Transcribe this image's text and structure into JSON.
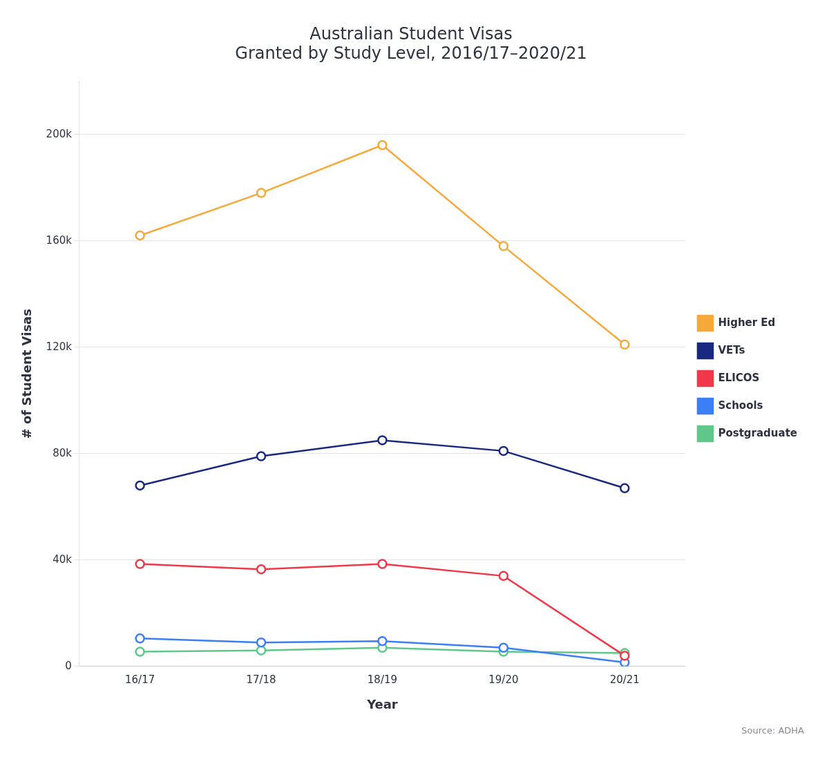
{
  "chart_data": {
    "type": "line",
    "title": "Australian Student Visas\nGranted by Study Level, 2016/17–2020/21",
    "x_label": "Year",
    "y_label": "# of Student Visas",
    "source": "Source: ADHA",
    "categories": [
      "16/17",
      "17/18",
      "18/19",
      "19/20",
      "20/21"
    ],
    "series": [
      {
        "name": "Higher Ed",
        "color": "#F5A93A",
        "values": [
          162000,
          178000,
          196000,
          158000,
          121000
        ]
      },
      {
        "name": "VETs",
        "color": "#1A2980",
        "values": [
          68000,
          79000,
          85000,
          81000,
          67000
        ]
      },
      {
        "name": "ELICOS",
        "color": "#F0384A",
        "values": [
          38500,
          36500,
          38500,
          34000,
          4000
        ]
      },
      {
        "name": "Schools",
        "color": "#3B7EF5",
        "values": [
          10500,
          9000,
          9500,
          7000,
          1500
        ]
      },
      {
        "name": "Postgraduate",
        "color": "#5DC88A",
        "values": [
          5500,
          6000,
          7000,
          5500,
          5000
        ]
      }
    ],
    "ylim": [
      0,
      220000
    ],
    "yticks": [
      0,
      {
        "value": 40000,
        "label": "40k"
      },
      {
        "value": 80000,
        "label": "80k"
      },
      {
        "value": 120000,
        "label": "120k"
      },
      {
        "value": 160000,
        "label": "160k"
      },
      {
        "value": 200000,
        "label": "200k"
      }
    ],
    "grid": "y",
    "legend": "right",
    "marker": "circle"
  }
}
